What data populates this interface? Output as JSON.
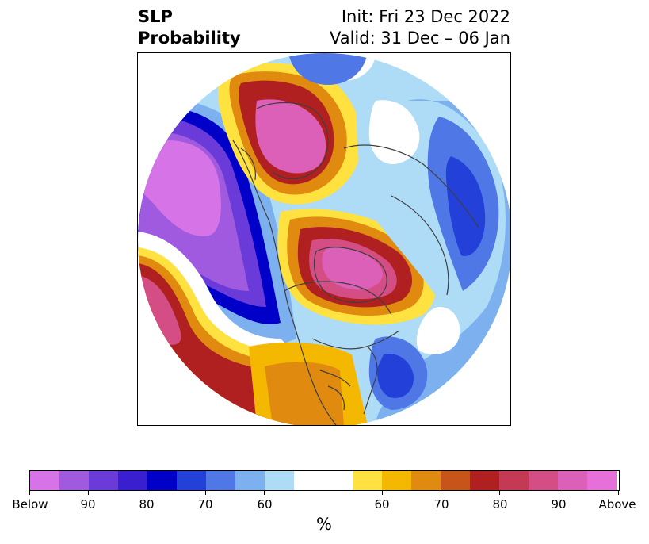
{
  "title": {
    "left_line1": "SLP",
    "left_line2": "Probability",
    "right_line1": "Init: Fri 23 Dec 2022",
    "right_line2": "Valid: 31 Dec – 06 Jan"
  },
  "colorbar": {
    "unit": "%",
    "ticks": [
      "Below",
      "90",
      "80",
      "70",
      "60",
      "60",
      "70",
      "80",
      "90",
      "Above"
    ],
    "colors": [
      "#d673e6",
      "#a05ae0",
      "#6b3bd9",
      "#3a1fd1",
      "#0000c8",
      "#2340d9",
      "#4f78e6",
      "#7db0ef",
      "#aedcf7",
      "#ffffff",
      "#ffe140",
      "#f5b800",
      "#e08a10",
      "#c75418",
      "#b02020",
      "#c43a55",
      "#d44d84",
      "#dd60b8",
      "#e66fd9"
    ]
  },
  "map": {
    "colors": {
      "below_strong": "#d673e6",
      "below_med": "#a05ae0",
      "below_blue": "#0000c8",
      "below_light": "#7db0ef",
      "neutral": "#ffffff",
      "above_yellow": "#ffe140",
      "above_orange": "#e08a10",
      "above_red": "#b02020",
      "above_strong": "#dd60b8"
    }
  }
}
